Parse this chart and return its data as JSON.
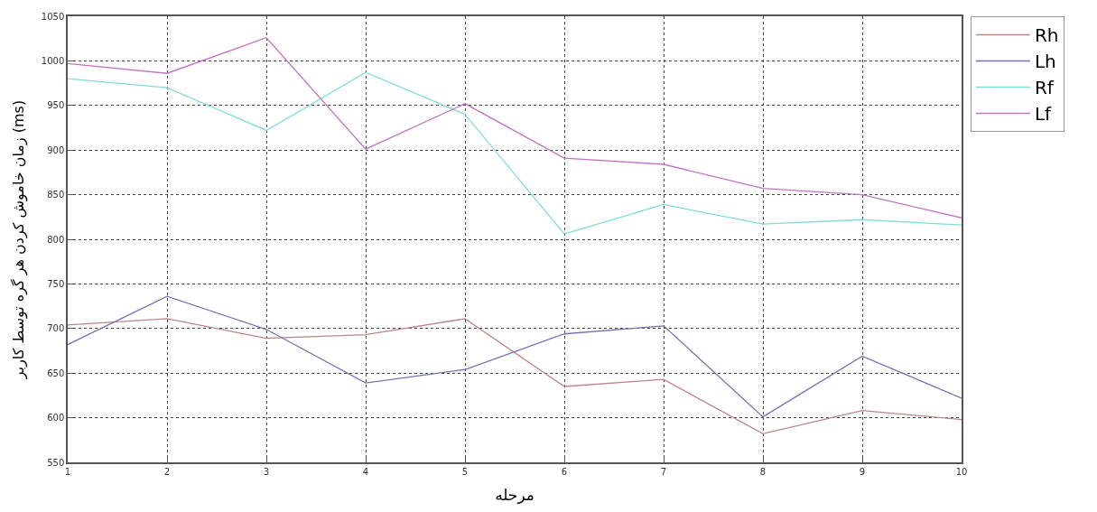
{
  "chart_data": {
    "type": "line",
    "xlabel": "مرحله",
    "ylabel": "زمان خاموش کردن هر گره توسط کاربر (ms)",
    "x": [
      1,
      2,
      3,
      4,
      5,
      6,
      7,
      8,
      9,
      10
    ],
    "series": [
      {
        "name": "Rh",
        "color": "#c08484",
        "values": [
          704,
          711,
          689,
          693,
          711,
          635,
          643,
          582,
          608,
          598
        ]
      },
      {
        "name": "Lh",
        "color": "#7474b4",
        "values": [
          682,
          736,
          699,
          639,
          654,
          694,
          703,
          601,
          669,
          622
        ]
      },
      {
        "name": "Rf",
        "color": "#7fdcdc",
        "values": [
          980,
          970,
          922,
          987,
          940,
          806,
          839,
          817,
          822,
          816
        ]
      },
      {
        "name": "Lf",
        "color": "#c074c4",
        "values": [
          997,
          986,
          1026,
          901,
          952,
          891,
          884,
          857,
          850,
          824
        ]
      }
    ],
    "xlim": [
      1,
      10
    ],
    "xticks": [
      1,
      2,
      3,
      4,
      5,
      6,
      7,
      8,
      9,
      10
    ],
    "ylim": [
      550,
      1050
    ],
    "yticks": [
      550,
      600,
      650,
      700,
      750,
      800,
      850,
      900,
      950,
      1000,
      1050
    ],
    "grid": true,
    "legend": "top right",
    "marker": "none",
    "line_style": "solid"
  }
}
